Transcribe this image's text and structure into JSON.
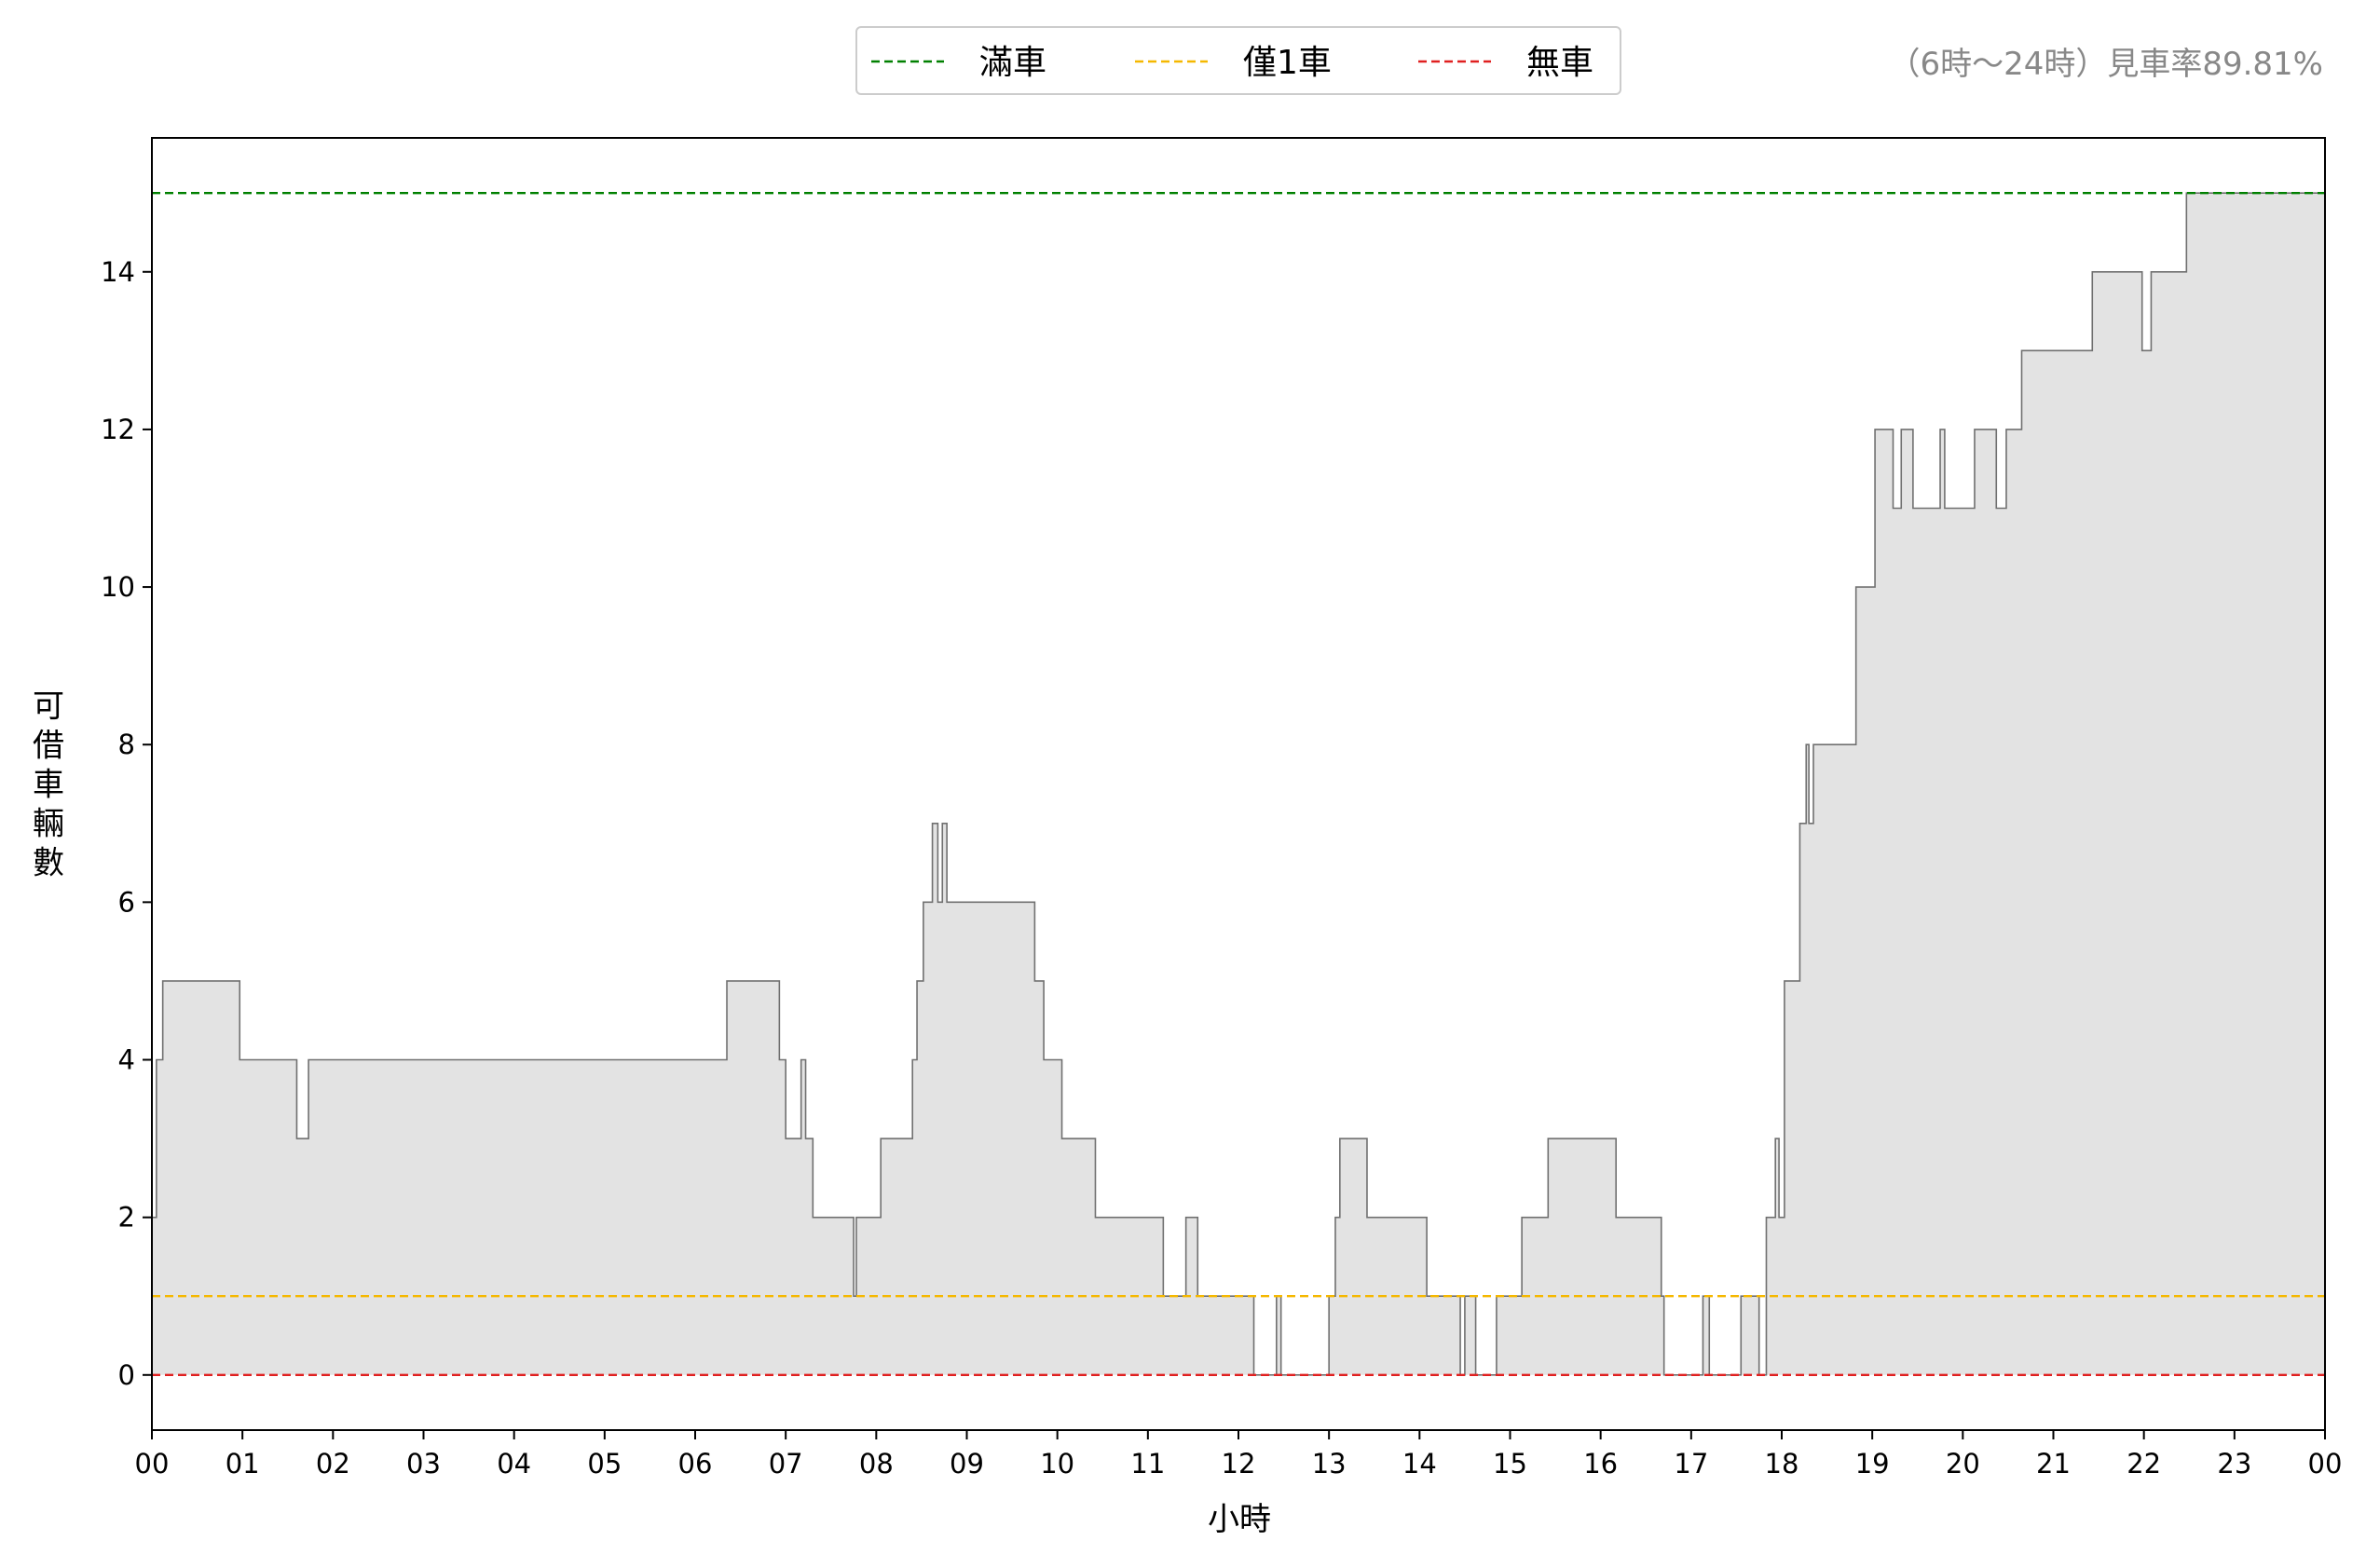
{
  "chart_data": {
    "type": "area",
    "title": "",
    "annotation": "（6時～24時）見車率89.81%",
    "xlabel": "小時",
    "ylabel": "可借車輛數",
    "x_unit": "hour",
    "xlim": [
      0,
      24
    ],
    "ylim": [
      -0.7,
      15.7
    ],
    "x_ticks": [
      "00",
      "01",
      "02",
      "03",
      "04",
      "05",
      "06",
      "07",
      "08",
      "09",
      "10",
      "11",
      "12",
      "13",
      "14",
      "15",
      "16",
      "17",
      "18",
      "19",
      "20",
      "21",
      "22",
      "23",
      "00"
    ],
    "y_ticks": [
      0,
      2,
      4,
      6,
      8,
      10,
      12,
      14
    ],
    "grid": false,
    "legend_position": "top-center",
    "reference_lines": [
      {
        "name": "滿車",
        "value": 15,
        "color": "#008000"
      },
      {
        "name": "僅1車",
        "value": 1,
        "color": "#f5b800"
      },
      {
        "name": "無車",
        "value": 0,
        "color": "#e02020"
      }
    ],
    "series": [
      {
        "fill_color": "#e3e3e3",
        "line_color": "#707070",
        "points": [
          [
            0.0,
            2
          ],
          [
            0.05,
            4
          ],
          [
            0.12,
            5
          ],
          [
            0.97,
            4
          ],
          [
            1.6,
            3
          ],
          [
            1.73,
            4
          ],
          [
            6.35,
            5
          ],
          [
            6.93,
            4
          ],
          [
            7.0,
            3
          ],
          [
            7.17,
            4
          ],
          [
            7.22,
            3
          ],
          [
            7.3,
            2
          ],
          [
            7.75,
            1
          ],
          [
            7.78,
            2
          ],
          [
            8.05,
            3
          ],
          [
            8.4,
            4
          ],
          [
            8.45,
            5
          ],
          [
            8.52,
            6
          ],
          [
            8.62,
            7
          ],
          [
            8.68,
            6
          ],
          [
            8.73,
            7
          ],
          [
            8.78,
            6
          ],
          [
            9.75,
            5
          ],
          [
            9.85,
            4
          ],
          [
            10.05,
            3
          ],
          [
            10.42,
            2
          ],
          [
            11.17,
            1
          ],
          [
            11.42,
            2
          ],
          [
            11.55,
            1
          ],
          [
            12.17,
            0
          ],
          [
            12.42,
            1
          ],
          [
            12.47,
            0
          ],
          [
            13.0,
            1
          ],
          [
            13.07,
            2
          ],
          [
            13.12,
            3
          ],
          [
            13.42,
            2
          ],
          [
            14.08,
            1
          ],
          [
            14.45,
            0
          ],
          [
            14.5,
            1
          ],
          [
            14.62,
            0
          ],
          [
            14.85,
            1
          ],
          [
            15.13,
            2
          ],
          [
            15.42,
            3
          ],
          [
            16.17,
            2
          ],
          [
            16.67,
            1
          ],
          [
            16.7,
            0
          ],
          [
            17.13,
            1
          ],
          [
            17.2,
            0
          ],
          [
            17.55,
            1
          ],
          [
            17.75,
            0
          ],
          [
            17.83,
            2
          ],
          [
            17.93,
            3
          ],
          [
            17.97,
            2
          ],
          [
            18.03,
            5
          ],
          [
            18.2,
            7
          ],
          [
            18.27,
            8
          ],
          [
            18.3,
            7
          ],
          [
            18.35,
            8
          ],
          [
            18.82,
            10
          ],
          [
            19.03,
            12
          ],
          [
            19.23,
            11
          ],
          [
            19.32,
            12
          ],
          [
            19.45,
            11
          ],
          [
            19.75,
            12
          ],
          [
            19.8,
            11
          ],
          [
            20.13,
            12
          ],
          [
            20.37,
            11
          ],
          [
            20.48,
            12
          ],
          [
            20.65,
            13
          ],
          [
            21.43,
            14
          ],
          [
            21.98,
            13
          ],
          [
            22.08,
            14
          ],
          [
            22.47,
            15
          ],
          [
            24.0,
            15
          ]
        ]
      }
    ]
  }
}
